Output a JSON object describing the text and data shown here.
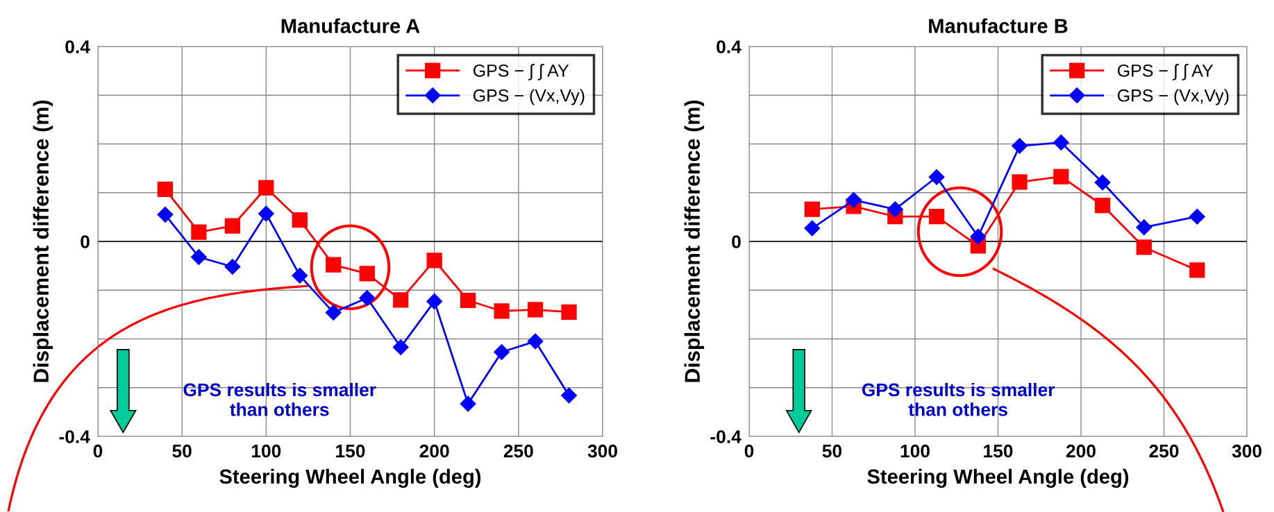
{
  "chart_data": [
    {
      "type": "line",
      "title": "Manufacture A",
      "xlabel": "Steering Wheel Angle (deg)",
      "ylabel": "Displacement difference (m)",
      "xlim": [
        0,
        300
      ],
      "xticks": [
        0,
        50,
        100,
        150,
        200,
        250,
        300
      ],
      "ylim": [
        -0.4,
        0.4
      ],
      "yticks": [
        {
          "value": -0.4,
          "label": "-0.4"
        },
        {
          "value": -0.3,
          "label": null
        },
        {
          "value": -0.2,
          "label": null
        },
        {
          "value": -0.1,
          "label": null
        },
        0,
        {
          "value": 0.1,
          "label": null
        },
        {
          "value": 0.2,
          "label": null
        },
        {
          "value": 0.3,
          "label": null
        },
        0.4
      ],
      "grid": true,
      "legend": "top right",
      "x": [
        40,
        60,
        80,
        100,
        120,
        140,
        160,
        180,
        200,
        220,
        240,
        260,
        280
      ],
      "series": [
        {
          "name": "GPS − ∫ ∫ AY",
          "color": "#ff0000",
          "marker": "square",
          "values": [
            0.107,
            0.019,
            0.032,
            0.11,
            0.044,
            -0.048,
            -0.066,
            -0.12,
            -0.039,
            -0.121,
            -0.143,
            -0.14,
            -0.145
          ]
        },
        {
          "name": "GPS − (Vx,Vy)",
          "color": "#0000ff",
          "marker": "diamond",
          "values": [
            0.055,
            -0.032,
            -0.052,
            0.057,
            -0.07,
            -0.146,
            -0.116,
            -0.217,
            -0.123,
            -0.333,
            -0.227,
            -0.205,
            -0.316
          ]
        }
      ],
      "annotations": [
        "GPS results is smaller\nthan others"
      ]
    },
    {
      "type": "line",
      "title": "Manufacture B",
      "xlabel": "Steering Wheel Angle (deg)",
      "ylabel": "Displacement difference (m)",
      "xlim": [
        0,
        300
      ],
      "xticks": [
        0,
        50,
        100,
        150,
        200,
        250,
        300
      ],
      "ylim": [
        -0.4,
        0.4
      ],
      "yticks": [
        {
          "value": -0.4,
          "label": "-0.4"
        },
        {
          "value": -0.3,
          "label": null
        },
        {
          "value": -0.2,
          "label": null
        },
        {
          "value": -0.1,
          "label": null
        },
        0,
        {
          "value": 0.1,
          "label": null
        },
        {
          "value": 0.2,
          "label": null
        },
        {
          "value": 0.3,
          "label": null
        },
        0.4
      ],
      "grid": true,
      "legend": "top right",
      "x": [
        38,
        63,
        88,
        113,
        138,
        163,
        188,
        213,
        238,
        270
      ],
      "series": [
        {
          "name": "GPS − ∫ ∫ AY",
          "color": "#ff0000",
          "marker": "square",
          "values": [
            0.066,
            0.072,
            0.051,
            0.051,
            -0.009,
            0.122,
            0.133,
            0.074,
            -0.012,
            -0.059
          ]
        },
        {
          "name": "GPS − (Vx,Vy)",
          "color": "#0000ff",
          "marker": "diamond",
          "values": [
            0.027,
            0.085,
            0.066,
            0.132,
            0.01,
            0.196,
            0.203,
            0.121,
            0.029,
            0.051
          ]
        }
      ],
      "annotations": [
        "GPS results is smaller\nthan others"
      ]
    }
  ]
}
